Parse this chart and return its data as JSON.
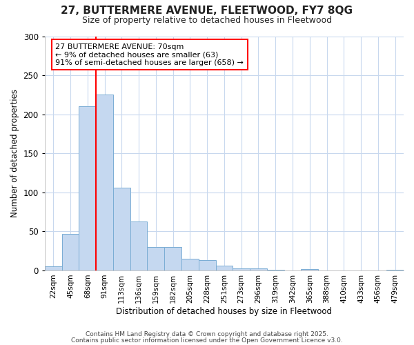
{
  "title": "27, BUTTERMERE AVENUE, FLEETWOOD, FY7 8QG",
  "subtitle": "Size of property relative to detached houses in Fleetwood",
  "xlabel": "Distribution of detached houses by size in Fleetwood",
  "ylabel": "Number of detached properties",
  "bar_labels": [
    "22sqm",
    "45sqm",
    "68sqm",
    "91sqm",
    "113sqm",
    "136sqm",
    "159sqm",
    "182sqm",
    "205sqm",
    "228sqm",
    "251sqm",
    "273sqm",
    "296sqm",
    "319sqm",
    "342sqm",
    "365sqm",
    "388sqm",
    "410sqm",
    "433sqm",
    "456sqm",
    "479sqm"
  ],
  "bar_values": [
    5,
    47,
    210,
    225,
    106,
    63,
    30,
    30,
    15,
    13,
    6,
    3,
    3,
    1,
    0,
    2,
    0,
    0,
    0,
    0,
    1
  ],
  "bar_color": "#c5d8f0",
  "bar_edge_color": "#7aadd4",
  "red_line_x": 2.5,
  "annotation_title": "27 BUTTERMERE AVENUE: 70sqm",
  "annotation_line1": "← 9% of detached houses are smaller (63)",
  "annotation_line2": "91% of semi-detached houses are larger (658) →",
  "annotation_box_color": "white",
  "annotation_box_edge": "red",
  "ylim": [
    0,
    300
  ],
  "yticks": [
    0,
    50,
    100,
    150,
    200,
    250,
    300
  ],
  "footer1": "Contains HM Land Registry data © Crown copyright and database right 2025.",
  "footer2": "Contains public sector information licensed under the Open Government Licence v3.0.",
  "bg_color": "#ffffff",
  "grid_color": "#c8d8ee"
}
